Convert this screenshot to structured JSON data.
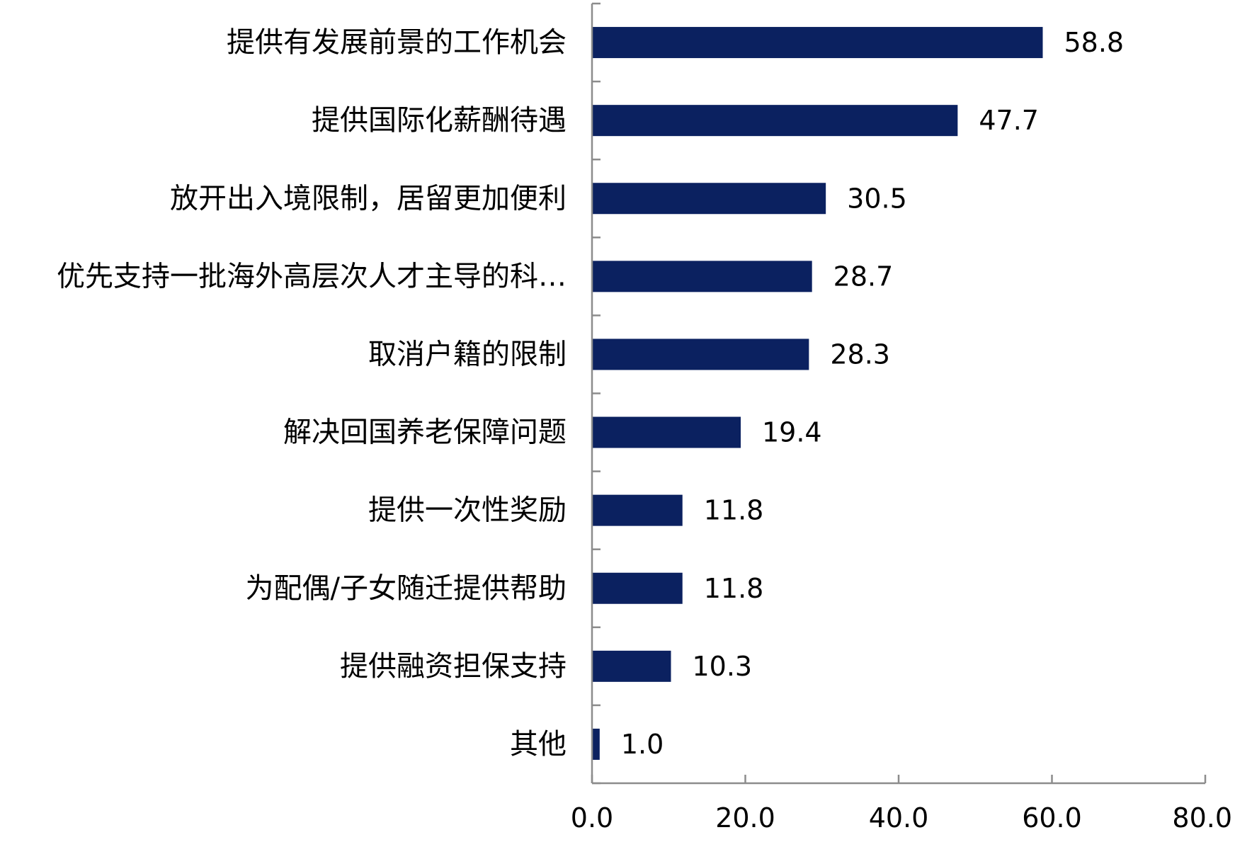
{
  "chart_data": {
    "type": "bar",
    "orientation": "horizontal",
    "categories": [
      "提供有发展前景的工作机会",
      "提供国际化薪酬待遇",
      "放开出入境限制，居留更加便利",
      "优先支持一批海外高层次人才主导的科…",
      "取消户籍的限制",
      "解决回国养老保障问题",
      "提供一次性奖励",
      "为配偶/子女随迁提供帮助",
      "提供融资担保支持",
      "其他"
    ],
    "values": [
      58.8,
      47.7,
      30.5,
      28.7,
      28.3,
      19.4,
      11.8,
      11.8,
      10.3,
      1.0
    ],
    "value_labels": [
      "58.8",
      "47.7",
      "30.5",
      "28.7",
      "28.3",
      "19.4",
      "11.8",
      "11.8",
      "10.3",
      "1.0"
    ],
    "xlim": [
      0,
      80
    ],
    "x_ticks": [
      0,
      20,
      40,
      60,
      80
    ],
    "x_tick_labels": [
      "0.0",
      "20.0",
      "40.0",
      "60.0",
      "80.0"
    ],
    "title": "",
    "xlabel": "",
    "ylabel": "",
    "grid": false,
    "legend": "none",
    "bar_color": "#0b2160",
    "axis_color": "#8c8c8c"
  }
}
